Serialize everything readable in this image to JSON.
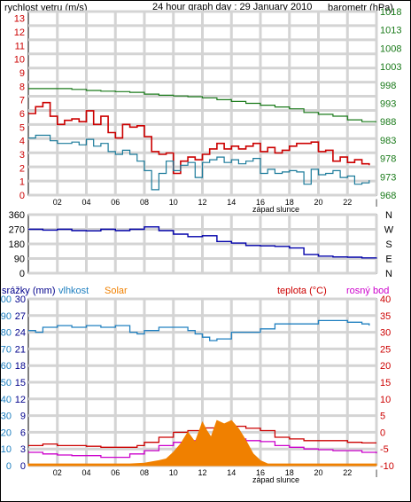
{
  "colors": {
    "wind": "#cc0000",
    "gust": "#1a7a9a",
    "baro": "#1a7a1a",
    "dir": "#0000aa",
    "hum": "#2080c0",
    "solar": "#f08000",
    "temp": "#cc0000",
    "dew": "#cc00cc",
    "rain": "#00008b",
    "grid": "#d4d4d4",
    "frame": "#000000"
  },
  "chart_data": [
    {
      "type": "line",
      "title": "24 hour graph day : 29 January 2010",
      "left_label": "rychlost vetru (m/s)",
      "right_label": "barometr (hPa)",
      "sunset_label": "západ slunce",
      "x_ticks": [
        "02",
        "04",
        "06",
        "08",
        "10",
        "12",
        "14",
        "16",
        "18",
        "20",
        "22",
        "|"
      ],
      "y_left_ticks": [
        "13",
        "12",
        "11",
        "10",
        "9",
        "8",
        "7",
        "6",
        "5",
        "4",
        "3",
        "2",
        "1",
        "0"
      ],
      "y_right_ticks": [
        "1018",
        "1013",
        "1008",
        "1003",
        "998",
        "993",
        "988",
        "983",
        "978",
        "973",
        "968"
      ],
      "ylim_left": [
        0,
        13.5
      ],
      "ylim_right": [
        968,
        1018
      ],
      "series": [
        {
          "key": "wind",
          "axis": "left",
          "x": [
            0,
            0.5,
            1,
            1.5,
            2,
            2.5,
            3,
            3.5,
            4,
            4.5,
            5,
            5.5,
            6,
            6.5,
            7,
            7.5,
            8,
            8.5,
            9,
            9.5,
            10,
            10.5,
            11,
            11.5,
            12,
            12.5,
            13,
            13.5,
            14,
            14.5,
            15,
            15.5,
            16,
            16.5,
            17,
            17.5,
            18,
            18.5,
            19,
            19.5,
            20,
            20.5,
            21,
            21.5,
            22,
            22.5,
            23,
            23.5
          ],
          "values": [
            6,
            6.5,
            6.8,
            5.8,
            5.2,
            5.5,
            5.6,
            5.4,
            6.2,
            5.2,
            5.8,
            4.6,
            4.2,
            5.2,
            5.0,
            5.1,
            4.3,
            3.2,
            3.0,
            3.1,
            1.6,
            2.5,
            2.8,
            2.6,
            3.0,
            3.4,
            3.8,
            3.4,
            3.6,
            3.4,
            3.6,
            3.8,
            3.2,
            3.5,
            3.1,
            3.3,
            3.6,
            3.8,
            3.8,
            3.9,
            3.2,
            3.3,
            2.5,
            2.8,
            2.4,
            2.6,
            2.3,
            2.2
          ]
        },
        {
          "key": "gust",
          "axis": "left",
          "x": [
            0,
            0.5,
            1,
            1.5,
            2,
            2.5,
            3,
            3.5,
            4,
            4.5,
            5,
            5.5,
            6,
            6.5,
            7,
            7.5,
            8,
            8.5,
            9,
            9.5,
            10,
            10.5,
            11,
            11.5,
            12,
            12.5,
            13,
            13.5,
            14,
            14.5,
            15,
            15.5,
            16,
            16.5,
            17,
            17.5,
            18,
            18.5,
            19,
            19.5,
            20,
            20.5,
            21,
            21.5,
            22,
            22.5,
            23,
            23.5
          ],
          "values": [
            4.2,
            4.4,
            4.4,
            4.0,
            3.8,
            3.8,
            3.9,
            3.7,
            4.1,
            3.6,
            3.8,
            3.2,
            3.0,
            3.3,
            3.0,
            2.5,
            1.8,
            0.4,
            1.6,
            2.5,
            1.8,
            2.2,
            2.4,
            1.3,
            2.4,
            2.6,
            2.8,
            2.4,
            2.6,
            2.3,
            2.5,
            2.7,
            1.6,
            1.9,
            1.6,
            1.7,
            1.8,
            1.7,
            0.8,
            1.9,
            1.5,
            1.6,
            1.8,
            1.3,
            1.4,
            0.8,
            0.9,
            1.1
          ]
        },
        {
          "key": "baro",
          "axis": "right",
          "x": [
            0,
            1,
            2,
            3,
            4,
            5,
            6,
            7,
            8,
            9,
            10,
            11,
            12,
            13,
            14,
            15,
            16,
            17,
            18,
            19,
            20,
            21,
            22,
            23,
            24
          ],
          "values": [
            997,
            997,
            997,
            996.8,
            996.5,
            996.3,
            996.2,
            996,
            995.5,
            995.2,
            995,
            994.8,
            994.5,
            994,
            993.5,
            993,
            992.5,
            992,
            991.5,
            990.5,
            990,
            989.5,
            988.5,
            988,
            988
          ]
        }
      ]
    },
    {
      "type": "scatter",
      "series": [
        {
          "key": "dir",
          "x": [
            0,
            1,
            2,
            3,
            4,
            5,
            6,
            7,
            8,
            9,
            10,
            11,
            12,
            13,
            14,
            15,
            16,
            17,
            18,
            19,
            20,
            21,
            22,
            23,
            24
          ],
          "values": [
            270,
            265,
            270,
            262,
            260,
            270,
            262,
            270,
            285,
            262,
            240,
            225,
            230,
            195,
            185,
            170,
            168,
            165,
            155,
            115,
            105,
            100,
            98,
            94,
            96
          ]
        }
      ],
      "y_ticks": [
        "360",
        "270",
        "180",
        "90",
        "0"
      ],
      "ylim": [
        0,
        360
      ],
      "compass": [
        "N",
        "W",
        "S",
        "E",
        "N"
      ]
    },
    {
      "type": "line",
      "sunset_label": "západ slunce",
      "legend": [
        "srážky (mm)",
        "vlhkost",
        "Solar",
        "teplota (°C)",
        "rosný bod"
      ],
      "x_ticks": [
        "02",
        "04",
        "06",
        "08",
        "10",
        "12",
        "14",
        "16",
        "18",
        "20",
        "22",
        "|"
      ],
      "y_left_a_ticks": [
        "100",
        "90",
        "80",
        "70",
        "60",
        "50",
        "40",
        "30",
        "20",
        "10",
        "0"
      ],
      "y_left_b_ticks": [
        "30",
        "27",
        "24",
        "21",
        "18",
        "15",
        "12",
        "9",
        "6",
        "3",
        "0"
      ],
      "y_right_ticks": [
        "40",
        "35",
        "30",
        "25",
        "20",
        "15",
        "10",
        "5",
        "0",
        "-5",
        "-10"
      ],
      "ylim_humidity": [
        0,
        100
      ],
      "ylim_rain": [
        0,
        30
      ],
      "ylim_temp": [
        -10,
        40
      ],
      "series": [
        {
          "key": "hum",
          "x": [
            0,
            0.5,
            1,
            2,
            3,
            4,
            5,
            6,
            7,
            7.5,
            8,
            9,
            10,
            11,
            11.5,
            12,
            12.5,
            13,
            14,
            15,
            16,
            17,
            18,
            19,
            20,
            21,
            22,
            23,
            23.5
          ],
          "values": [
            81,
            80,
            83,
            84,
            83,
            84,
            83,
            84,
            80,
            79,
            81,
            83,
            83,
            81,
            79,
            77,
            75,
            76,
            80,
            80,
            82,
            85,
            85,
            85,
            87,
            87,
            86,
            85,
            84
          ]
        },
        {
          "key": "temp",
          "x": [
            0,
            1,
            2,
            3,
            4,
            5,
            6,
            7,
            7.5,
            8,
            9,
            10,
            11,
            12,
            13,
            14,
            15,
            16,
            17,
            18,
            19,
            20,
            21,
            22,
            23,
            24
          ],
          "values": [
            -4,
            -3.5,
            -4,
            -4,
            -4.2,
            -4.5,
            -4.5,
            -4.5,
            -4,
            -3,
            -1.5,
            0,
            0.5,
            1.3,
            1.2,
            1.8,
            1.2,
            0.5,
            -1.5,
            -2,
            -2.5,
            -2.5,
            -2.5,
            -3,
            -3.2,
            -3.2
          ]
        },
        {
          "key": "dew",
          "x": [
            0,
            1,
            2,
            3,
            4,
            5,
            6,
            7,
            7.5,
            8,
            9,
            10,
            11,
            12,
            13,
            14,
            15,
            16,
            17,
            18,
            19,
            20,
            21,
            22,
            23,
            24
          ],
          "values": [
            -6,
            -6.5,
            -6.8,
            -7,
            -7,
            -7.5,
            -7.5,
            -6.5,
            -6.5,
            -5.5,
            -4,
            -3,
            -2.5,
            -2,
            -2,
            -2,
            -2.5,
            -2.8,
            -4,
            -4.5,
            -5,
            -5.2,
            -5.5,
            -5.5,
            -6,
            -6.3
          ]
        },
        {
          "key": "solar",
          "x": [
            0,
            6.8,
            7,
            8,
            9,
            9.5,
            10,
            10.5,
            11,
            11.5,
            12,
            12.3,
            12.6,
            13,
            13.5,
            14,
            14.5,
            15,
            15.5,
            16,
            16.5,
            24
          ],
          "values": [
            1,
            1,
            1,
            1.5,
            3,
            4,
            8,
            13,
            20,
            14,
            26,
            21,
            17,
            27,
            25,
            27,
            22,
            15,
            7,
            3,
            1,
            1
          ]
        }
      ]
    }
  ]
}
